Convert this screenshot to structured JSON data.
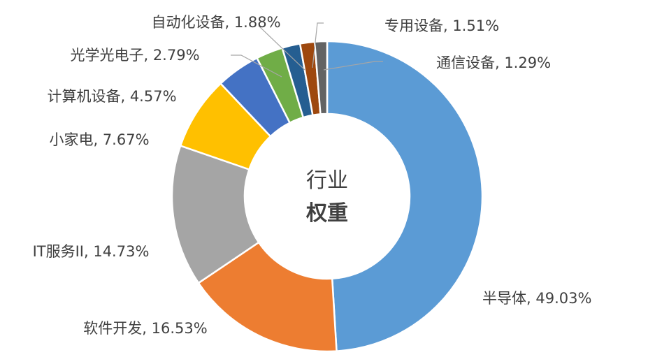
{
  "chart_data": {
    "type": "pie",
    "center_label_line1": "行业",
    "center_label_line2": "权重",
    "slices": [
      {
        "name": "半导体",
        "value": 49.03,
        "label": "半导体, 49.03%",
        "color": "#5B9BD5"
      },
      {
        "name": "软件开发",
        "value": 16.53,
        "label": "软件开发, 16.53%",
        "color": "#ED7D31"
      },
      {
        "name": "IT服务II",
        "value": 14.73,
        "label": "IT服务II, 14.73%",
        "color": "#A5A5A5"
      },
      {
        "name": "小家电",
        "value": 7.67,
        "label": "小家电, 7.67%",
        "color": "#FFC000"
      },
      {
        "name": "计算机设备",
        "value": 4.57,
        "label": "计算机设备, 4.57%",
        "color": "#4472C4"
      },
      {
        "name": "光学光电子",
        "value": 2.79,
        "label": "光学光电子, 2.79%",
        "color": "#70AD47"
      },
      {
        "name": "自动化设备",
        "value": 1.88,
        "label": "自动化设备, 1.88%",
        "color": "#255E91"
      },
      {
        "name": "专用设备",
        "value": 1.51,
        "label": "专用设备, 1.51%",
        "color": "#9E480E"
      },
      {
        "name": "通信设备",
        "value": 1.29,
        "label": "通信设备, 1.29%",
        "color": "#636363"
      }
    ]
  }
}
